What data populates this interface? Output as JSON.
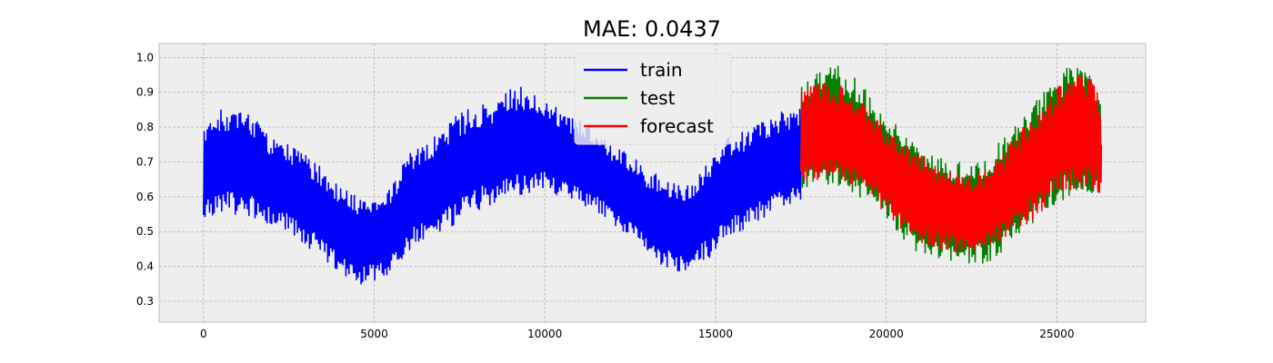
{
  "chart_data": {
    "type": "line",
    "title": "MAE: 0.0437",
    "xlabel": "",
    "ylabel": "",
    "xlim": [
      -1300,
      27600
    ],
    "ylim": [
      0.24,
      1.04
    ],
    "xticks": [
      0,
      5000,
      10000,
      15000,
      20000,
      25000
    ],
    "yticks": [
      0.3,
      0.4,
      0.5,
      0.6,
      0.7,
      0.8,
      0.9,
      1.0
    ],
    "xtick_labels": [
      "0",
      "5000",
      "10000",
      "15000",
      "20000",
      "25000"
    ],
    "ytick_labels": [
      "0.3",
      "0.4",
      "0.5",
      "0.6",
      "0.7",
      "0.8",
      "0.9",
      "1.0"
    ],
    "grid": true,
    "legend_position": "top-center",
    "series": [
      {
        "name": "train",
        "color": "#0000ff",
        "x": [
          0,
          500,
          1000,
          1500,
          2000,
          2500,
          3000,
          3500,
          4000,
          4500,
          5000,
          5500,
          6000,
          6500,
          7000,
          7500,
          8000,
          8500,
          9000,
          9500,
          10000,
          10500,
          11000,
          11500,
          12000,
          12500,
          13000,
          13500,
          14000,
          14500,
          15000,
          15500,
          16000,
          16500,
          17000,
          17500
        ],
        "min": [
          0.53,
          0.55,
          0.55,
          0.54,
          0.52,
          0.5,
          0.46,
          0.42,
          0.38,
          0.35,
          0.35,
          0.38,
          0.44,
          0.48,
          0.5,
          0.53,
          0.56,
          0.58,
          0.59,
          0.61,
          0.62,
          0.6,
          0.58,
          0.56,
          0.52,
          0.48,
          0.43,
          0.4,
          0.38,
          0.4,
          0.44,
          0.48,
          0.51,
          0.54,
          0.56,
          0.58
        ],
        "max": [
          0.8,
          0.85,
          0.86,
          0.83,
          0.77,
          0.75,
          0.72,
          0.68,
          0.63,
          0.6,
          0.61,
          0.64,
          0.72,
          0.76,
          0.8,
          0.84,
          0.86,
          0.87,
          0.91,
          0.92,
          0.87,
          0.85,
          0.82,
          0.8,
          0.75,
          0.72,
          0.68,
          0.66,
          0.64,
          0.66,
          0.74,
          0.78,
          0.8,
          0.82,
          0.85,
          0.86
        ]
      },
      {
        "name": "test",
        "color": "#008000",
        "x": [
          17500,
          18000,
          18500,
          19000,
          19500,
          20000,
          20500,
          21000,
          21500,
          22000,
          22500,
          23000,
          23500,
          24000,
          24500,
          25000,
          25500,
          26000,
          26300
        ],
        "min": [
          0.6,
          0.62,
          0.63,
          0.61,
          0.58,
          0.54,
          0.48,
          0.43,
          0.41,
          0.41,
          0.41,
          0.41,
          0.44,
          0.48,
          0.53,
          0.58,
          0.6,
          0.6,
          0.6
        ],
        "max": [
          0.93,
          0.96,
          0.99,
          0.95,
          0.9,
          0.83,
          0.79,
          0.76,
          0.72,
          0.7,
          0.7,
          0.72,
          0.78,
          0.84,
          0.89,
          0.96,
          0.98,
          0.95,
          0.9
        ]
      },
      {
        "name": "forecast",
        "color": "#ff0000",
        "x": [
          17500,
          18000,
          18500,
          19000,
          19500,
          20000,
          20500,
          21000,
          21500,
          22000,
          22500,
          23000,
          23500,
          24000,
          24500,
          25000,
          25500,
          26000,
          26300
        ],
        "min": [
          0.63,
          0.64,
          0.65,
          0.63,
          0.6,
          0.55,
          0.5,
          0.47,
          0.45,
          0.44,
          0.44,
          0.45,
          0.48,
          0.51,
          0.55,
          0.6,
          0.62,
          0.61,
          0.6
        ],
        "max": [
          0.91,
          0.93,
          0.93,
          0.9,
          0.85,
          0.8,
          0.76,
          0.72,
          0.69,
          0.67,
          0.66,
          0.68,
          0.74,
          0.8,
          0.86,
          0.92,
          0.96,
          0.94,
          0.88
        ]
      }
    ]
  }
}
